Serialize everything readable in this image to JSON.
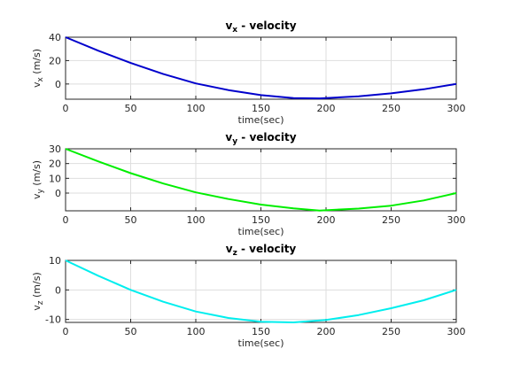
{
  "chart_data": [
    {
      "type": "line",
      "title": {
        "main": "v",
        "sub": "x",
        "rest": " - velocity"
      },
      "xlabel": "time(sec)",
      "ylabel": {
        "main": "v",
        "sub": "x",
        "rest": " (m/s)"
      },
      "xlim": [
        0,
        300
      ],
      "ylim": [
        -13,
        40
      ],
      "xticks": [
        0,
        50,
        100,
        150,
        200,
        250,
        300
      ],
      "yticks": [
        0,
        20,
        40
      ],
      "grid": true,
      "series": [
        {
          "color": "#0000cc",
          "x": [
            0,
            25,
            50,
            75,
            100,
            125,
            150,
            175,
            195,
            225,
            250,
            275,
            300
          ],
          "y": [
            40,
            28.5,
            18,
            8.5,
            0.5,
            -5.2,
            -9.5,
            -12,
            -12.3,
            -10.5,
            -8,
            -4.5,
            0
          ]
        }
      ]
    },
    {
      "type": "line",
      "title": {
        "main": "v",
        "sub": "y",
        "rest": " - velocity"
      },
      "xlabel": "time(sec)",
      "ylabel": {
        "main": "v",
        "sub": "y",
        "rest": " (m/s)"
      },
      "xlim": [
        0,
        300
      ],
      "ylim": [
        -12,
        30
      ],
      "xticks": [
        0,
        50,
        100,
        150,
        200,
        250,
        300
      ],
      "yticks": [
        0,
        10,
        20,
        30
      ],
      "grid": true,
      "series": [
        {
          "color": "#00ee00",
          "x": [
            0,
            25,
            50,
            75,
            100,
            125,
            150,
            175,
            195,
            225,
            250,
            275,
            300
          ],
          "y": [
            30,
            21.5,
            13.5,
            6.5,
            0.5,
            -4,
            -7.8,
            -10.3,
            -11.8,
            -10.5,
            -8.5,
            -5,
            0
          ]
        }
      ]
    },
    {
      "type": "line",
      "title": {
        "main": "v",
        "sub": "z",
        "rest": " - velocity"
      },
      "xlabel": "time(sec)",
      "ylabel": {
        "main": "v",
        "sub": "z",
        "rest": " (m/s)"
      },
      "xlim": [
        0,
        300
      ],
      "ylim": [
        -11,
        10
      ],
      "xticks": [
        0,
        50,
        100,
        150,
        200,
        250,
        300
      ],
      "yticks": [
        -10,
        0,
        10
      ],
      "grid": true,
      "series": [
        {
          "color": "#00eeee",
          "x": [
            0,
            25,
            50,
            75,
            100,
            125,
            150,
            175,
            200,
            225,
            250,
            275,
            300
          ],
          "y": [
            10,
            4.8,
            0,
            -4,
            -7.3,
            -9.5,
            -10.8,
            -11,
            -10.2,
            -8.5,
            -6.2,
            -3.5,
            0
          ]
        }
      ]
    }
  ]
}
